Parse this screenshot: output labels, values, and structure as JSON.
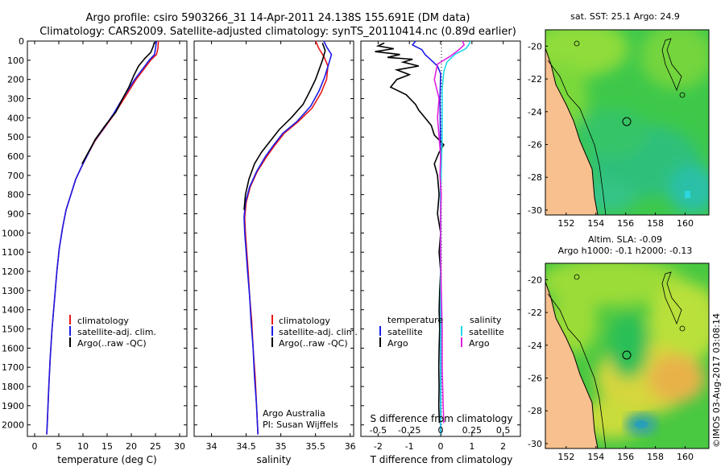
{
  "header": {
    "title_line1": "Argo profile: csiro 5903266_31 14-Apr-2011 24.138S 155.691E (DM data)",
    "title_line2": "Climatology: CARS2009. Satellite-adjusted climatology: synTS_20110414.nc (0.89d earlier)"
  },
  "colors": {
    "climatology": "#e8171b",
    "satellite": "#1b1be8",
    "argo": "#000000",
    "sal_satellite": "#22d8e8",
    "sal_argo": "#e020e0",
    "land": "#f7c08e"
  },
  "chart_data": [
    {
      "type": "line",
      "id": "temperature",
      "xlabel": "temperature (deg C)",
      "ylabel": "",
      "xlim": [
        -1.5,
        31.5
      ],
      "ylim": [
        2060,
        0
      ],
      "xticks": [
        0,
        5,
        10,
        15,
        20,
        25,
        30
      ],
      "yticks": [
        0,
        100,
        200,
        300,
        400,
        500,
        600,
        700,
        800,
        900,
        1000,
        1100,
        1200,
        1300,
        1400,
        1500,
        1600,
        1700,
        1800,
        1900,
        2000
      ],
      "legend": [
        "climatology",
        "satellite-adj. clim.",
        "Argo(..raw -QC)"
      ],
      "series": [
        {
          "name": "climatology",
          "color": "#e8171b",
          "points": [
            [
              25.6,
              0
            ],
            [
              25.5,
              40
            ],
            [
              25.2,
              70
            ],
            [
              24.0,
              100
            ],
            [
              22.5,
              150
            ],
            [
              21.0,
              200
            ],
            [
              19.5,
              260
            ],
            [
              18.0,
              320
            ],
            [
              16.5,
              380
            ],
            [
              14.5,
              450
            ],
            [
              12.5,
              520
            ],
            [
              11.0,
              590
            ],
            [
              9.8,
              650
            ],
            [
              8.5,
              720
            ],
            [
              7.5,
              800
            ],
            [
              6.5,
              880
            ],
            [
              5.8,
              970
            ],
            [
              5.1,
              1080
            ],
            [
              4.6,
              1200
            ],
            [
              4.1,
              1350
            ],
            [
              3.6,
              1500
            ],
            [
              3.2,
              1660
            ],
            [
              2.9,
              1820
            ],
            [
              2.6,
              2000
            ],
            [
              2.5,
              2050
            ]
          ]
        },
        {
          "name": "satellite-adj. clim.",
          "color": "#1b1be8",
          "points": [
            [
              25.2,
              0
            ],
            [
              25.0,
              40
            ],
            [
              24.8,
              70
            ],
            [
              23.7,
              100
            ],
            [
              22.2,
              150
            ],
            [
              20.7,
              200
            ],
            [
              19.2,
              260
            ],
            [
              17.7,
              320
            ],
            [
              16.3,
              380
            ],
            [
              14.4,
              450
            ],
            [
              12.4,
              520
            ],
            [
              11.0,
              590
            ],
            [
              9.8,
              650
            ],
            [
              8.5,
              720
            ],
            [
              7.5,
              800
            ],
            [
              6.5,
              880
            ],
            [
              5.8,
              970
            ],
            [
              5.1,
              1080
            ],
            [
              4.6,
              1200
            ],
            [
              4.1,
              1350
            ],
            [
              3.6,
              1500
            ],
            [
              3.2,
              1660
            ],
            [
              2.9,
              1820
            ],
            [
              2.6,
              2000
            ],
            [
              2.5,
              2050
            ]
          ]
        },
        {
          "name": "Argo(..raw -QC)",
          "color": "#000000",
          "points": [
            [
              24.8,
              5
            ],
            [
              24.5,
              30
            ],
            [
              24.0,
              60
            ],
            [
              22.8,
              90
            ],
            [
              21.5,
              130
            ],
            [
              20.5,
              180
            ],
            [
              19.5,
              240
            ],
            [
              18.2,
              300
            ],
            [
              16.8,
              370
            ],
            [
              14.6,
              440
            ],
            [
              12.6,
              510
            ],
            [
              11.1,
              580
            ],
            [
              9.8,
              640
            ]
          ]
        }
      ]
    },
    {
      "type": "line",
      "id": "salinity",
      "xlabel": "salinity",
      "xlim": [
        33.75,
        36.05
      ],
      "ylim": [
        2060,
        0
      ],
      "xticks": [
        34,
        34.5,
        35,
        35.5,
        36
      ],
      "legend": [
        "climatology",
        "satellite-adj. clim.",
        "Argo(..raw -QC)"
      ],
      "annotation": [
        "Argo Australia",
        "PI: Susan Wijffels"
      ],
      "series": [
        {
          "name": "climatology",
          "color": "#e8171b",
          "points": [
            [
              35.5,
              0
            ],
            [
              35.55,
              40
            ],
            [
              35.62,
              80
            ],
            [
              35.68,
              130
            ],
            [
              35.66,
              200
            ],
            [
              35.58,
              270
            ],
            [
              35.45,
              350
            ],
            [
              35.25,
              420
            ],
            [
              35.05,
              480
            ],
            [
              34.92,
              540
            ],
            [
              34.8,
              600
            ],
            [
              34.66,
              680
            ],
            [
              34.56,
              760
            ],
            [
              34.5,
              840
            ],
            [
              34.48,
              920
            ],
            [
              34.49,
              1000
            ],
            [
              34.51,
              1100
            ],
            [
              34.53,
              1200
            ],
            [
              34.55,
              1330
            ],
            [
              34.58,
              1460
            ],
            [
              34.6,
              1600
            ],
            [
              34.63,
              1750
            ],
            [
              34.65,
              1900
            ],
            [
              34.67,
              2050
            ]
          ]
        },
        {
          "name": "satellite-adj. clim.",
          "color": "#1b1be8",
          "points": [
            [
              35.62,
              0
            ],
            [
              35.66,
              30
            ],
            [
              35.73,
              70
            ],
            [
              35.69,
              120
            ],
            [
              35.63,
              190
            ],
            [
              35.55,
              260
            ],
            [
              35.43,
              340
            ],
            [
              35.23,
              420
            ],
            [
              35.03,
              480
            ],
            [
              34.9,
              540
            ],
            [
              34.78,
              600
            ],
            [
              34.65,
              680
            ],
            [
              34.55,
              760
            ],
            [
              34.49,
              840
            ],
            [
              34.47,
              920
            ],
            [
              34.48,
              1000
            ],
            [
              34.5,
              1100
            ],
            [
              34.52,
              1200
            ],
            [
              34.55,
              1330
            ],
            [
              34.57,
              1460
            ],
            [
              34.6,
              1600
            ],
            [
              34.62,
              1750
            ],
            [
              34.65,
              1900
            ],
            [
              34.67,
              2050
            ]
          ]
        },
        {
          "name": "Argo(..raw -QC)",
          "color": "#000000",
          "points": [
            [
              35.6,
              10
            ],
            [
              35.64,
              50
            ],
            [
              35.6,
              100
            ],
            [
              35.55,
              150
            ],
            [
              35.5,
              200
            ],
            [
              35.42,
              260
            ],
            [
              35.32,
              330
            ],
            [
              35.15,
              400
            ],
            [
              34.98,
              460
            ],
            [
              34.85,
              520
            ],
            [
              34.72,
              580
            ],
            [
              34.62,
              640
            ],
            [
              34.54,
              720
            ],
            [
              34.49,
              800
            ],
            [
              34.47,
              880
            ]
          ]
        }
      ]
    },
    {
      "type": "line",
      "id": "difference",
      "xlabel": "T difference from climatology",
      "xlabel_top": "S difference from climatology",
      "xlim": [
        -2.55,
        2.55
      ],
      "xticks": [
        -2,
        -1,
        0,
        1,
        2
      ],
      "xticks_top": [
        -0.5,
        -0.25,
        0,
        0.25,
        0.5
      ],
      "ylim": [
        2060,
        0
      ],
      "legend_temperature_title": "temperature",
      "legend_salinity_title": "salinity",
      "legend": [
        "satellite",
        "Argo",
        "satellite",
        "Argo"
      ],
      "series": [
        {
          "name": "T satellite",
          "color": "#1b1be8",
          "points": [
            [
              -0.8,
              0
            ],
            [
              -0.9,
              20
            ],
            [
              -0.6,
              45
            ],
            [
              -0.5,
              70
            ],
            [
              -0.3,
              100
            ],
            [
              -0.1,
              130
            ],
            [
              0.0,
              170
            ],
            [
              -0.02,
              300
            ],
            [
              0.0,
              600
            ],
            [
              0.0,
              2050
            ]
          ]
        },
        {
          "name": "T Argo",
          "color": "#000000",
          "points": [
            [
              -1.8,
              10
            ],
            [
              -2.0,
              25
            ],
            [
              -1.5,
              40
            ],
            [
              -2.1,
              55
            ],
            [
              -1.3,
              70
            ],
            [
              -1.7,
              85
            ],
            [
              -0.9,
              95
            ],
            [
              -1.2,
              110
            ],
            [
              -0.7,
              130
            ],
            [
              -1.4,
              150
            ],
            [
              -1.0,
              175
            ],
            [
              -1.4,
              200
            ],
            [
              -1.6,
              240
            ],
            [
              -1.1,
              280
            ],
            [
              -0.8,
              330
            ],
            [
              -0.7,
              360
            ],
            [
              -0.5,
              400
            ],
            [
              -0.3,
              440
            ],
            [
              -0.2,
              490
            ],
            [
              0.1,
              540
            ],
            [
              -0.05,
              580
            ],
            [
              -0.2,
              640
            ],
            [
              -0.1,
              700
            ],
            [
              -0.05,
              800
            ],
            [
              -0.1,
              900
            ],
            [
              0.0,
              1000
            ],
            [
              -0.05,
              1100
            ],
            [
              0.0,
              1200
            ],
            [
              -0.03,
              1300
            ],
            [
              -0.05,
              1400
            ],
            [
              -0.03,
              1500
            ],
            [
              -0.05,
              1600
            ],
            [
              -0.06,
              1700
            ],
            [
              -0.05,
              1800
            ],
            [
              -0.06,
              1900
            ],
            [
              -0.04,
              1990
            ]
          ]
        },
        {
          "name": "S satellite",
          "color": "#22d8e8",
          "points": [
            [
              0.95,
              0
            ],
            [
              0.9,
              20
            ],
            [
              0.8,
              40
            ],
            [
              0.45,
              70
            ],
            [
              0.2,
              110
            ],
            [
              0.1,
              160
            ],
            [
              0.05,
              250
            ],
            [
              0.05,
              500
            ],
            [
              0.0,
              800
            ],
            [
              0.0,
              2050
            ]
          ]
        },
        {
          "name": "S Argo",
          "color": "#e020e0",
          "points": [
            [
              0.7,
              0
            ],
            [
              0.75,
              20
            ],
            [
              0.55,
              50
            ],
            [
              0.3,
              80
            ],
            [
              -0.1,
              120
            ],
            [
              -0.2,
              200
            ],
            [
              -0.05,
              300
            ],
            [
              -0.1,
              400
            ],
            [
              -0.05,
              500
            ],
            [
              0.0,
              600
            ],
            [
              -0.02,
              700
            ],
            [
              0.02,
              800
            ],
            [
              0.0,
              900
            ],
            [
              0.0,
              1100
            ],
            [
              0.02,
              1300
            ],
            [
              0.05,
              1500
            ],
            [
              0.05,
              1700
            ],
            [
              0.08,
              1900
            ],
            [
              0.1,
              1990
            ]
          ]
        }
      ]
    }
  ],
  "maps": [
    {
      "title": "sat. SST: 25.1  Argo: 24.9",
      "xticks": [
        "152",
        "154",
        "156",
        "158",
        "160"
      ],
      "yticks": [
        "-20",
        "-22",
        "-24",
        "-26",
        "-28",
        "-30"
      ]
    },
    {
      "title_line1": "Altim. SLA: -0.09",
      "title_line2": "Argo h1000: -0.1  h2000: -0.13",
      "xticks": [
        "152",
        "154",
        "156",
        "158",
        "160"
      ],
      "yticks": [
        "-20",
        "-22",
        "-24",
        "-26",
        "-28",
        "-30"
      ]
    }
  ],
  "footer": {
    "credit": "©IMOS 03-Aug-2017 03:08:14"
  }
}
